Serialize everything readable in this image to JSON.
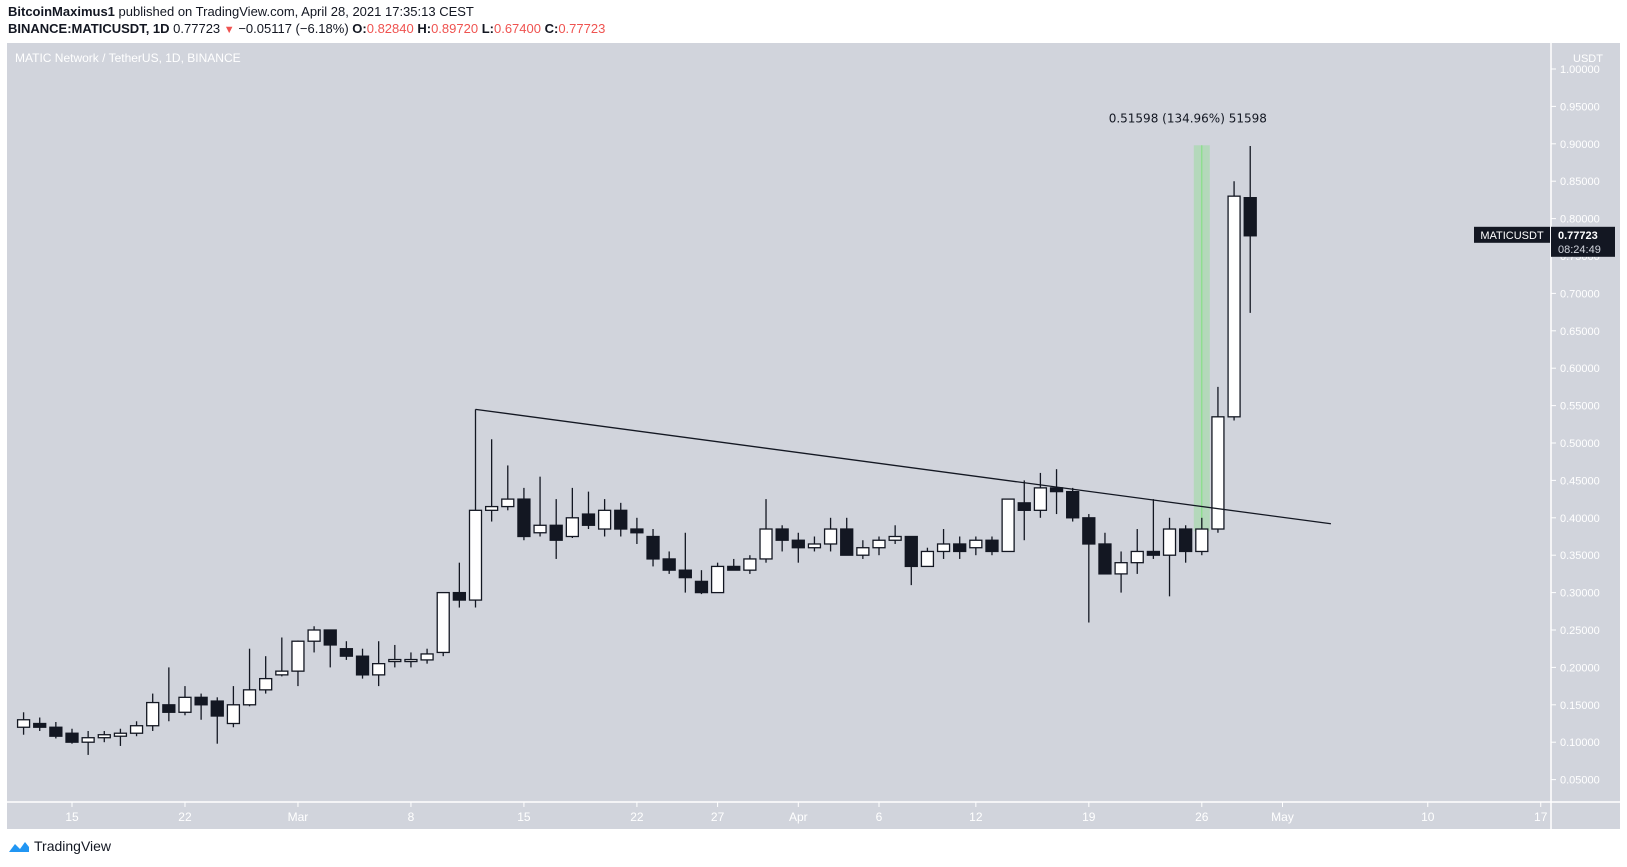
{
  "header": {
    "publisher": "BitcoinMaximus1",
    "published_text": "published on TradingView.com, April 28, 2021 17:35:13 CEST",
    "symbol_line": "BINANCE:MATICUSDT, 1D",
    "last_price": "0.77723",
    "change": "−0.05117 (−6.18%)",
    "o_label": "O:",
    "o_value": "0.82840",
    "h_label": "H:",
    "h_value": "0.89720",
    "l_label": "L:",
    "l_value": "0.67400",
    "c_label": "C:",
    "c_value": "0.77723",
    "change_direction_icon": "down-triangle-icon"
  },
  "chart_legend": "MATIC Network / TetherUS, 1D, BINANCE",
  "price_axis": {
    "currency": "USDT",
    "ticks": [
      "1.00000",
      "0.95000",
      "0.90000",
      "0.85000",
      "0.80000",
      "0.75000",
      "0.70000",
      "0.65000",
      "0.60000",
      "0.55000",
      "0.50000",
      "0.45000",
      "0.40000",
      "0.35000",
      "0.30000",
      "0.25000",
      "0.20000",
      "0.15000",
      "0.10000",
      "0.05000"
    ]
  },
  "price_label": {
    "symbol": "MATICUSDT",
    "price": "0.77723",
    "countdown": "08:24:49"
  },
  "measure_label": "0.51598 (134.96%) 51598",
  "footer": {
    "brand": "TradingView"
  },
  "colors": {
    "background": "#d1d4dc",
    "up_body": "#ffffff",
    "down_body": "#131722",
    "wick": "#131722",
    "axis_text": "#ffffff",
    "measure": "#7ee07e",
    "header_red": "#ef5350",
    "logo_blue": "#2196f3"
  },
  "chart_data": {
    "type": "candlestick",
    "title": "MATIC Network / TetherUS, 1D, BINANCE",
    "xlabel": "",
    "ylabel": "USDT",
    "ylim": [
      0.0,
      1.0
    ],
    "x_tick_labels": [
      {
        "label": "15",
        "day": 0
      },
      {
        "label": "22",
        "day": 7
      },
      {
        "label": "Mar",
        "day": 14
      },
      {
        "label": "8",
        "day": 21
      },
      {
        "label": "15",
        "day": 28
      },
      {
        "label": "22",
        "day": 35
      },
      {
        "label": "27",
        "day": 40
      },
      {
        "label": "Apr",
        "day": 45
      },
      {
        "label": "6",
        "day": 50
      },
      {
        "label": "12",
        "day": 56
      },
      {
        "label": "19",
        "day": 63
      },
      {
        "label": "26",
        "day": 70
      },
      {
        "label": "May",
        "day": 75
      },
      {
        "label": "10",
        "day": 84
      },
      {
        "label": "17",
        "day": 91
      }
    ],
    "first_day": -3,
    "ohlc": [
      [
        0.12,
        0.14,
        0.11,
        0.13
      ],
      [
        0.125,
        0.133,
        0.115,
        0.12
      ],
      [
        0.12,
        0.127,
        0.105,
        0.108
      ],
      [
        0.112,
        0.118,
        0.098,
        0.1
      ],
      [
        0.1,
        0.115,
        0.083,
        0.106
      ],
      [
        0.106,
        0.115,
        0.1,
        0.11
      ],
      [
        0.108,
        0.118,
        0.095,
        0.112
      ],
      [
        0.112,
        0.128,
        0.108,
        0.122
      ],
      [
        0.122,
        0.165,
        0.115,
        0.153
      ],
      [
        0.15,
        0.2,
        0.128,
        0.14
      ],
      [
        0.14,
        0.175,
        0.136,
        0.16
      ],
      [
        0.16,
        0.165,
        0.13,
        0.15
      ],
      [
        0.155,
        0.16,
        0.098,
        0.135
      ],
      [
        0.125,
        0.175,
        0.12,
        0.15
      ],
      [
        0.15,
        0.225,
        0.148,
        0.17
      ],
      [
        0.17,
        0.215,
        0.165,
        0.185
      ],
      [
        0.19,
        0.24,
        0.188,
        0.195
      ],
      [
        0.195,
        0.236,
        0.175,
        0.235
      ],
      [
        0.235,
        0.255,
        0.22,
        0.25
      ],
      [
        0.25,
        0.25,
        0.2,
        0.23
      ],
      [
        0.225,
        0.235,
        0.21,
        0.215
      ],
      [
        0.215,
        0.225,
        0.185,
        0.19
      ],
      [
        0.19,
        0.235,
        0.175,
        0.205
      ],
      [
        0.21,
        0.23,
        0.2,
        0.2105
      ],
      [
        0.21,
        0.22,
        0.2,
        0.2105
      ],
      [
        0.21,
        0.225,
        0.205,
        0.218
      ],
      [
        0.22,
        0.3,
        0.215,
        0.3
      ],
      [
        0.3,
        0.34,
        0.28,
        0.29
      ],
      [
        0.29,
        0.545,
        0.28,
        0.41
      ],
      [
        0.41,
        0.505,
        0.395,
        0.415
      ],
      [
        0.415,
        0.47,
        0.41,
        0.425
      ],
      [
        0.425,
        0.44,
        0.37,
        0.375
      ],
      [
        0.38,
        0.455,
        0.375,
        0.39
      ],
      [
        0.39,
        0.425,
        0.345,
        0.37
      ],
      [
        0.375,
        0.44,
        0.373,
        0.4
      ],
      [
        0.405,
        0.435,
        0.385,
        0.39
      ],
      [
        0.385,
        0.425,
        0.375,
        0.41
      ],
      [
        0.41,
        0.42,
        0.375,
        0.385
      ],
      [
        0.385,
        0.4,
        0.365,
        0.38
      ],
      [
        0.375,
        0.385,
        0.335,
        0.345
      ],
      [
        0.345,
        0.355,
        0.325,
        0.33
      ],
      [
        0.33,
        0.38,
        0.3,
        0.32
      ],
      [
        0.315,
        0.33,
        0.298,
        0.3
      ],
      [
        0.3,
        0.34,
        0.3,
        0.335
      ],
      [
        0.335,
        0.345,
        0.33,
        0.33
      ],
      [
        0.33,
        0.35,
        0.325,
        0.345
      ],
      [
        0.345,
        0.425,
        0.34,
        0.385
      ],
      [
        0.385,
        0.39,
        0.355,
        0.37
      ],
      [
        0.37,
        0.38,
        0.34,
        0.36
      ],
      [
        0.36,
        0.375,
        0.355,
        0.365
      ],
      [
        0.365,
        0.4,
        0.355,
        0.385
      ],
      [
        0.385,
        0.4,
        0.35,
        0.35
      ],
      [
        0.35,
        0.37,
        0.345,
        0.36
      ],
      [
        0.36,
        0.375,
        0.35,
        0.37
      ],
      [
        0.37,
        0.39,
        0.365,
        0.375
      ],
      [
        0.375,
        0.375,
        0.31,
        0.335
      ],
      [
        0.335,
        0.36,
        0.335,
        0.355
      ],
      [
        0.355,
        0.385,
        0.345,
        0.365
      ],
      [
        0.365,
        0.375,
        0.345,
        0.355
      ],
      [
        0.36,
        0.375,
        0.35,
        0.37
      ],
      [
        0.37,
        0.375,
        0.35,
        0.355
      ],
      [
        0.355,
        0.425,
        0.355,
        0.425
      ],
      [
        0.42,
        0.45,
        0.37,
        0.41
      ],
      [
        0.41,
        0.46,
        0.4,
        0.44
      ],
      [
        0.44,
        0.465,
        0.405,
        0.435
      ],
      [
        0.435,
        0.44,
        0.395,
        0.4
      ],
      [
        0.4,
        0.405,
        0.26,
        0.365
      ],
      [
        0.365,
        0.38,
        0.325,
        0.325
      ],
      [
        0.325,
        0.355,
        0.3,
        0.34
      ],
      [
        0.34,
        0.385,
        0.325,
        0.355
      ],
      [
        0.355,
        0.425,
        0.345,
        0.35
      ],
      [
        0.35,
        0.4,
        0.295,
        0.385
      ],
      [
        0.385,
        0.39,
        0.34,
        0.355
      ],
      [
        0.355,
        0.4,
        0.35,
        0.385
      ],
      [
        0.385,
        0.575,
        0.38,
        0.535
      ],
      [
        0.535,
        0.85,
        0.53,
        0.83
      ],
      [
        0.828,
        0.897,
        0.674,
        0.777
      ]
    ],
    "trendline": {
      "from": {
        "day": 25,
        "price": 0.545
      },
      "to": {
        "day": 78,
        "price": 0.392
      }
    },
    "measure": {
      "day": 70,
      "from_price": 0.382,
      "to_price": 0.898,
      "label": "0.51598 (134.96%) 51598"
    },
    "grid": false,
    "legend_position": "top-left"
  }
}
